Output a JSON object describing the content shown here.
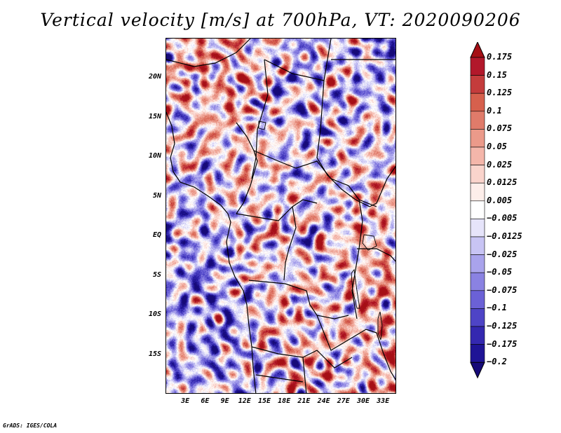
{
  "title": "Vertical velocity [m/s] at 700hPa, VT: 2020090206",
  "credit": "GrADS: IGES/COLA",
  "map": {
    "lon_range": [
      0,
      35
    ],
    "lat_range": [
      -20,
      25
    ],
    "y_ticks": [
      {
        "label": "20N",
        "lat": 20
      },
      {
        "label": "15N",
        "lat": 15
      },
      {
        "label": "10N",
        "lat": 10
      },
      {
        "label": "5N",
        "lat": 5
      },
      {
        "label": "EQ",
        "lat": 0
      },
      {
        "label": "5S",
        "lat": -5
      },
      {
        "label": "10S",
        "lat": -10
      },
      {
        "label": "15S",
        "lat": -15
      }
    ],
    "x_ticks": [
      {
        "label": "3E",
        "lon": 3
      },
      {
        "label": "6E",
        "lon": 6
      },
      {
        "label": "9E",
        "lon": 9
      },
      {
        "label": "12E",
        "lon": 12
      },
      {
        "label": "15E",
        "lon": 15
      },
      {
        "label": "18E",
        "lon": 18
      },
      {
        "label": "21E",
        "lon": 21
      },
      {
        "label": "24E",
        "lon": 24
      },
      {
        "label": "27E",
        "lon": 27
      },
      {
        "label": "30E",
        "lon": 30
      },
      {
        "label": "33E",
        "lon": 33
      }
    ]
  },
  "colorbar": {
    "labels": [
      "0.175",
      "0.15",
      "0.125",
      "0.1",
      "0.075",
      "0.05",
      "0.025",
      "0.0125",
      "0.005",
      "−0.005",
      "−0.0125",
      "−0.025",
      "−0.05",
      "−0.075",
      "−0.1",
      "−0.125",
      "−0.175",
      "−0.2"
    ],
    "colors": [
      "#a50f15",
      "#b2182b",
      "#c43c3c",
      "#d6604d",
      "#e07b6a",
      "#eb9a8a",
      "#f4b6aa",
      "#fad4cc",
      "#fdeeea",
      "#ffffff",
      "#e6e4fa",
      "#c8c4f4",
      "#a9a3ec",
      "#8a82e2",
      "#6b61d6",
      "#4e44c6",
      "#3428b0",
      "#1f1496",
      "#160a78"
    ]
  }
}
